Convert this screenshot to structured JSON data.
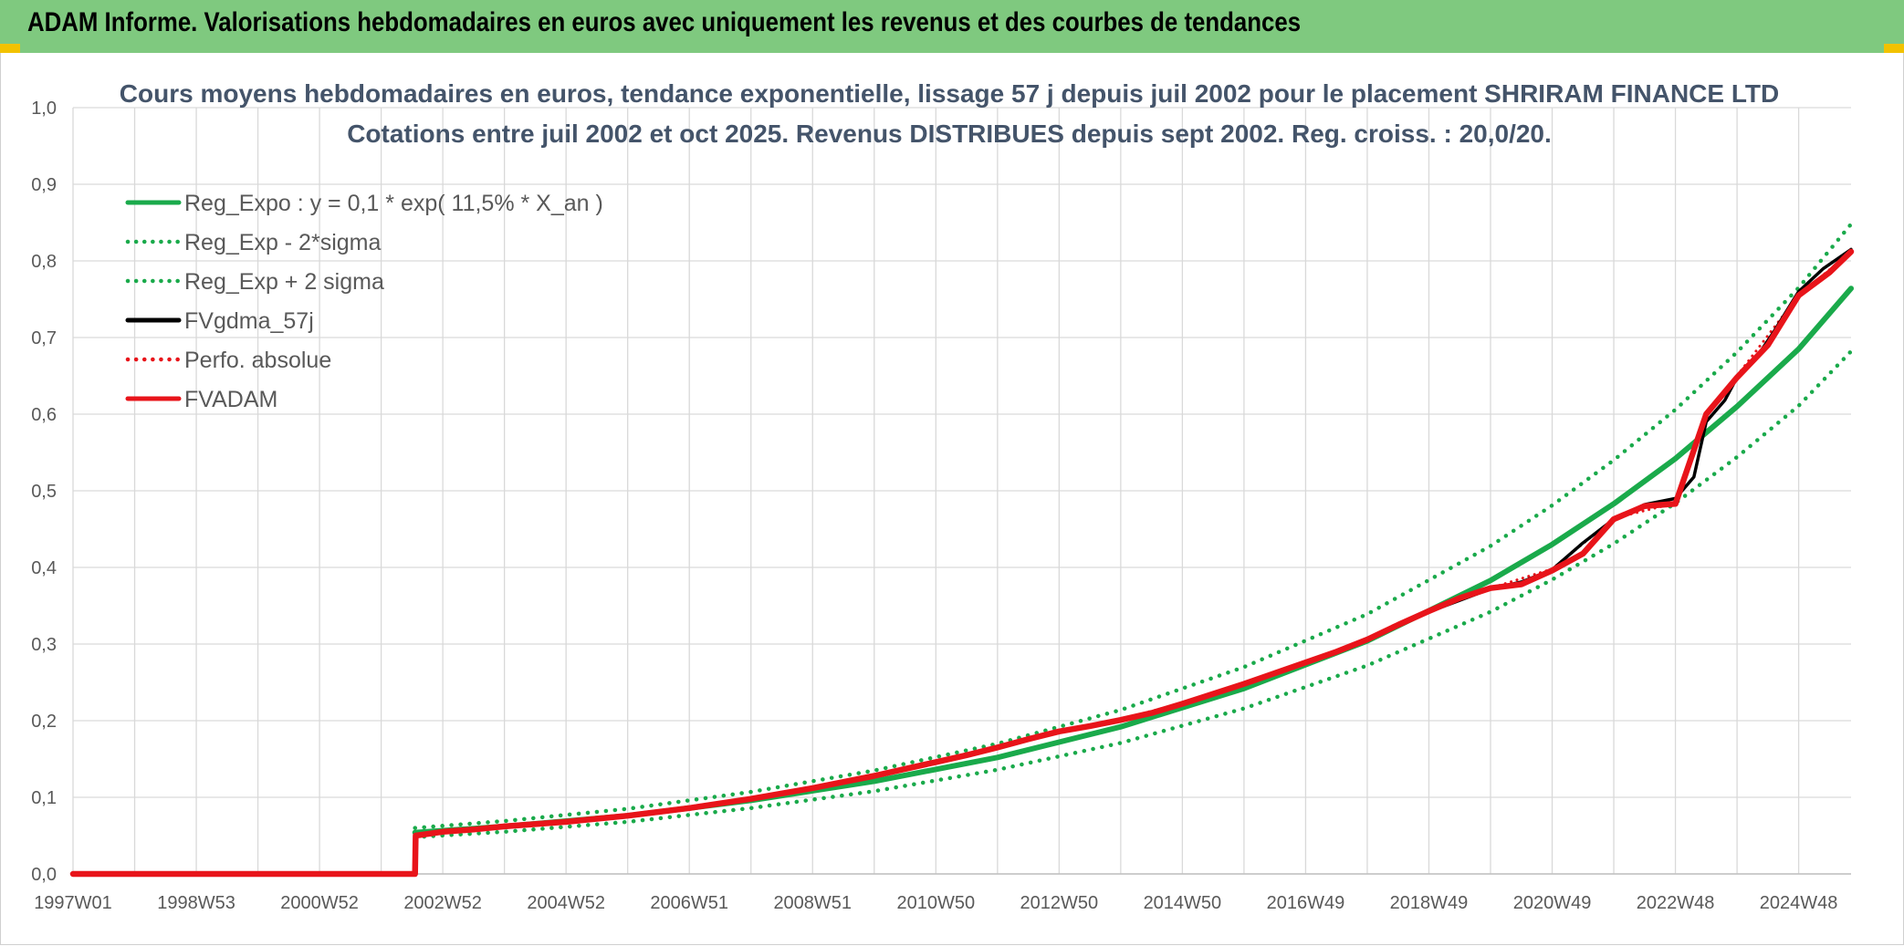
{
  "header": {
    "title": "ADAM Informe. Valorisations hebdomadaires en euros avec uniquement les revenus et des courbes de tendances"
  },
  "chart_data": {
    "type": "line",
    "title_line1": "Cours moyens hebdomadaires en euros, tendance exponentielle, lissage 57 j depuis juil 2002 pour le placement SHRIRAM FINANCE LTD",
    "title_line2": "Cotations entre juil 2002 et oct 2025. Revenus DISTRIBUES depuis sept 2002. Reg. croiss. : 20,0/20.",
    "ylim": [
      0,
      1.0
    ],
    "y_ticks": [
      "0,0",
      "0,1",
      "0,2",
      "0,3",
      "0,4",
      "0,5",
      "0,6",
      "0,7",
      "0,8",
      "0,9",
      "1,0"
    ],
    "x_range": [
      1997.0,
      2025.85
    ],
    "x_ticks": [
      {
        "label": "1997W01",
        "year": 1997.0
      },
      {
        "label": "1998W53",
        "year": 1999.0
      },
      {
        "label": "2000W52",
        "year": 2001.0
      },
      {
        "label": "2002W52",
        "year": 2003.0
      },
      {
        "label": "2004W52",
        "year": 2005.0
      },
      {
        "label": "2006W51",
        "year": 2007.0
      },
      {
        "label": "2008W51",
        "year": 2009.0
      },
      {
        "label": "2010W50",
        "year": 2011.0
      },
      {
        "label": "2012W50",
        "year": 2013.0
      },
      {
        "label": "2014W50",
        "year": 2015.0
      },
      {
        "label": "2016W49",
        "year": 2017.0
      },
      {
        "label": "2018W49",
        "year": 2019.0
      },
      {
        "label": "2020W49",
        "year": 2021.0
      },
      {
        "label": "2022W48",
        "year": 2023.0
      },
      {
        "label": "2024W48",
        "year": 2025.0
      }
    ],
    "grid": true,
    "legend_position": "top-left",
    "series": [
      {
        "name": "Reg_Expo : y = 0,1 * exp( 11,5% *  X_an )",
        "color": "#1aaa4b",
        "style": "solid",
        "x": [
          2002.55,
          2004,
          2006,
          2008,
          2010,
          2012,
          2014,
          2016,
          2018,
          2020,
          2021,
          2022,
          2023,
          2024,
          2025,
          2025.85
        ],
        "y": [
          0.054,
          0.062,
          0.076,
          0.096,
          0.121,
          0.152,
          0.192,
          0.242,
          0.304,
          0.383,
          0.43,
          0.483,
          0.542,
          0.61,
          0.685,
          0.764
        ]
      },
      {
        "name": "Reg_Exp - 2*sigma",
        "color": "#1aaa4b",
        "style": "dotted",
        "x": [
          2002.55,
          2004,
          2006,
          2008,
          2010,
          2012,
          2014,
          2016,
          2018,
          2020,
          2021,
          2022,
          2023,
          2024,
          2025,
          2025.85
        ],
        "y": [
          0.048,
          0.055,
          0.068,
          0.086,
          0.108,
          0.136,
          0.171,
          0.216,
          0.272,
          0.342,
          0.384,
          0.431,
          0.484,
          0.544,
          0.611,
          0.682
        ]
      },
      {
        "name": "Reg_Exp + 2 sigma",
        "color": "#1aaa4b",
        "style": "dotted",
        "x": [
          2002.55,
          2004,
          2006,
          2008,
          2010,
          2012,
          2014,
          2016,
          2018,
          2020,
          2021,
          2022,
          2023,
          2024,
          2025,
          2025.85
        ],
        "y": [
          0.06,
          0.069,
          0.085,
          0.107,
          0.135,
          0.17,
          0.214,
          0.27,
          0.339,
          0.428,
          0.481,
          0.54,
          0.606,
          0.681,
          0.765,
          0.848
        ]
      },
      {
        "name": "FVgdma_57j",
        "color": "#000000",
        "style": "solid",
        "x": [
          1997.0,
          2002.55,
          2002.56,
          2003,
          2004,
          2005,
          2006,
          2007,
          2008,
          2009,
          2010,
          2011,
          2012,
          2013,
          2014,
          2015,
          2016,
          2017,
          2018,
          2019,
          2020,
          2020.5,
          2021,
          2021.5,
          2022,
          2022.5,
          2023,
          2023.3,
          2023.5,
          2023.8,
          2024,
          2024.3,
          2024.6,
          2025,
          2025.4,
          2025.85
        ],
        "y": [
          0.0,
          0.0,
          0.05,
          0.054,
          0.061,
          0.068,
          0.077,
          0.087,
          0.098,
          0.112,
          0.128,
          0.146,
          0.166,
          0.186,
          0.201,
          0.222,
          0.248,
          0.275,
          0.305,
          0.342,
          0.372,
          0.381,
          0.397,
          0.432,
          0.463,
          0.482,
          0.49,
          0.518,
          0.59,
          0.618,
          0.648,
          0.672,
          0.708,
          0.76,
          0.79,
          0.815
        ]
      },
      {
        "name": "Perfo. absolue",
        "color": "#e8141a",
        "style": "dotted",
        "x": [
          1997.0,
          2002.55,
          2002.56,
          2003,
          2004,
          2005,
          2006,
          2007,
          2008,
          2009,
          2010,
          2011,
          2012,
          2013,
          2014,
          2015,
          2016,
          2017,
          2018,
          2019,
          2020,
          2021,
          2022,
          2023,
          2023.5,
          2024,
          2025,
          2025.85
        ],
        "y": [
          0.0,
          0.0,
          0.05,
          0.054,
          0.061,
          0.068,
          0.077,
          0.088,
          0.099,
          0.113,
          0.129,
          0.147,
          0.167,
          0.187,
          0.202,
          0.223,
          0.249,
          0.276,
          0.306,
          0.343,
          0.373,
          0.398,
          0.464,
          0.484,
          0.6,
          0.65,
          0.755,
          0.812
        ]
      },
      {
        "name": "FVADAM",
        "color": "#e8141a",
        "style": "solid",
        "x": [
          1997.0,
          2002.55,
          2002.56,
          2003.0,
          2003.5,
          2004.0,
          2004.5,
          2005.0,
          2005.5,
          2006.0,
          2006.5,
          2007.0,
          2007.5,
          2008.0,
          2008.5,
          2009.0,
          2009.5,
          2010.0,
          2010.5,
          2011.0,
          2011.5,
          2012.0,
          2012.5,
          2013.0,
          2013.5,
          2014.0,
          2014.5,
          2015.0,
          2015.5,
          2016.0,
          2016.5,
          2017.0,
          2017.5,
          2018.0,
          2018.5,
          2019.0,
          2019.5,
          2020.0,
          2020.5,
          2021.0,
          2021.5,
          2022.0,
          2022.5,
          2023.0,
          2023.5,
          2024.0,
          2024.5,
          2025.0,
          2025.5,
          2025.85
        ],
        "y": [
          0.0,
          0.0,
          0.05,
          0.055,
          0.058,
          0.062,
          0.065,
          0.068,
          0.072,
          0.076,
          0.081,
          0.086,
          0.092,
          0.098,
          0.105,
          0.112,
          0.12,
          0.128,
          0.137,
          0.146,
          0.155,
          0.165,
          0.176,
          0.186,
          0.193,
          0.201,
          0.21,
          0.222,
          0.235,
          0.248,
          0.262,
          0.276,
          0.29,
          0.306,
          0.325,
          0.343,
          0.36,
          0.373,
          0.378,
          0.396,
          0.418,
          0.463,
          0.48,
          0.483,
          0.6,
          0.648,
          0.69,
          0.755,
          0.785,
          0.812
        ]
      }
    ]
  }
}
